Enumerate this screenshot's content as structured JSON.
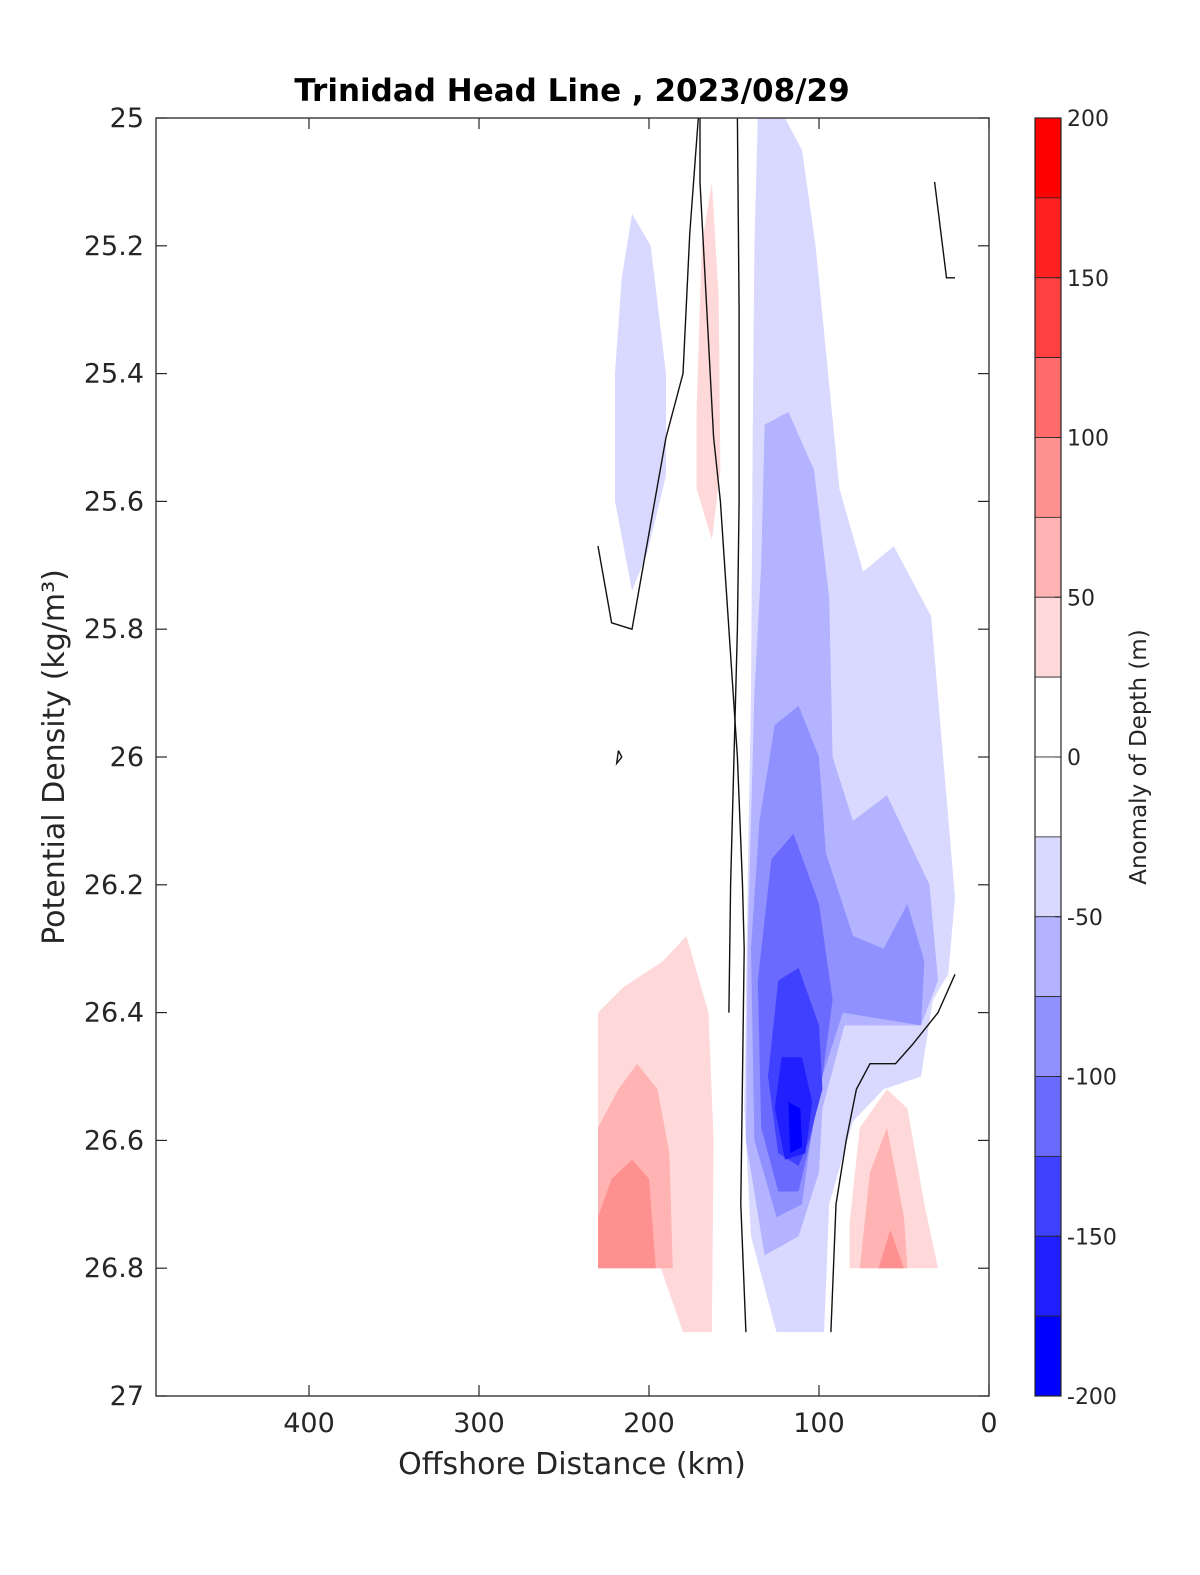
{
  "chart_data": {
    "type": "heatmap",
    "subtype": "filled-contour",
    "title": "Trinidad Head Line , 2023/08/29",
    "xlabel": "Offshore Distance (km)",
    "ylabel": "Potential Density (kg/m³)",
    "x_reversed": true,
    "y_reversed": true,
    "xlim": [
      0,
      490
    ],
    "ylim": [
      25,
      27
    ],
    "x_ticks": [
      400,
      300,
      200,
      100,
      0
    ],
    "x_tick_labels": [
      "400",
      "300",
      "200",
      "100",
      "0"
    ],
    "y_ticks": [
      25,
      25.2,
      25.4,
      25.6,
      25.8,
      26,
      26.2,
      26.4,
      26.6,
      26.8,
      27
    ],
    "y_tick_labels": [
      "25",
      "25.2",
      "25.4",
      "25.6",
      "25.8",
      "26",
      "26.2",
      "26.4",
      "26.6",
      "26.8",
      "27"
    ],
    "grid": false,
    "colorbar": {
      "label": "Anomaly of Depth (m)",
      "range": [
        -200,
        200
      ],
      "tick_values": [
        200,
        150,
        100,
        50,
        0,
        -50,
        -100,
        -150,
        -200
      ],
      "tick_labels": [
        "200",
        "150",
        "100",
        "50",
        "0",
        "-50",
        "-100",
        "-150",
        "-200"
      ],
      "levels": [
        {
          "min": 175,
          "max": 200,
          "color": "#ff0000"
        },
        {
          "min": 150,
          "max": 175,
          "color": "#ff2020"
        },
        {
          "min": 125,
          "max": 150,
          "color": "#ff4040"
        },
        {
          "min": 100,
          "max": 125,
          "color": "#ff6a6a"
        },
        {
          "min": 75,
          "max": 100,
          "color": "#ff9090"
        },
        {
          "min": 50,
          "max": 75,
          "color": "#ffb3b3"
        },
        {
          "min": 25,
          "max": 50,
          "color": "#ffd9d9"
        },
        {
          "min": 0,
          "max": 25,
          "color": "#ffffff"
        },
        {
          "min": -25,
          "max": 0,
          "color": "#ffffff"
        },
        {
          "min": -50,
          "max": -25,
          "color": "#d9d9ff"
        },
        {
          "min": -75,
          "max": -50,
          "color": "#b3b3ff"
        },
        {
          "min": -100,
          "max": -75,
          "color": "#9090ff"
        },
        {
          "min": -125,
          "max": -100,
          "color": "#6a6aff"
        },
        {
          "min": -150,
          "max": -125,
          "color": "#4040ff"
        },
        {
          "min": -175,
          "max": -150,
          "color": "#2020ff"
        },
        {
          "min": -200,
          "max": -175,
          "color": "#0000ff"
        }
      ]
    },
    "contour_regions": [
      {
        "name": "cross-shore negative core",
        "fill": "#d9d9ff",
        "points": [
          [
            135,
            25
          ],
          [
            115,
            25
          ],
          [
            105,
            25.05
          ],
          [
            95,
            25.2
          ],
          [
            85,
            25.55
          ],
          [
            70,
            25.72
          ],
          [
            55,
            25.7
          ],
          [
            40,
            25.8
          ],
          [
            22,
            26.2
          ],
          [
            28,
            26.35
          ],
          [
            45,
            26.52
          ],
          [
            80,
            26.55
          ],
          [
            95,
            26.75
          ],
          [
            98,
            26.9
          ],
          [
            125,
            26.9
          ],
          [
            140,
            26.7
          ],
          [
            143,
            26.5
          ],
          [
            140,
            26.0
          ],
          [
            138,
            25.5
          ]
        ]
      },
      {
        "name": "offshore negative patch",
        "fill": "#d9d9ff",
        "points": [
          [
            220,
            25.4
          ],
          [
            215,
            25.25
          ],
          [
            210,
            25.15
          ],
          [
            200,
            25.2
          ],
          [
            190,
            25.4
          ],
          [
            190,
            25.55
          ],
          [
            200,
            25.7
          ],
          [
            210,
            25.73
          ],
          [
            220,
            25.6
          ]
        ]
      },
      {
        "name": "offshore positive patch",
        "fill": "#ffd9d9",
        "points": [
          [
            172,
            25.45
          ],
          [
            168,
            25.2
          ],
          [
            162,
            25.1
          ],
          [
            158,
            25.3
          ],
          [
            158,
            25.55
          ],
          [
            163,
            25.65
          ],
          [
            172,
            25.6
          ]
        ]
      },
      {
        "name": "offshore positive lower",
        "fill": "#ffd9d9",
        "points": [
          [
            230,
            26.4
          ],
          [
            215,
            26.35
          ],
          [
            185,
            26.3
          ],
          [
            170,
            26.32
          ],
          [
            162,
            26.45
          ],
          [
            162,
            26.6
          ],
          [
            165,
            26.9
          ],
          [
            180,
            26.9
          ],
          [
            200,
            26.8
          ],
          [
            230,
            26.8
          ]
        ]
      }
    ]
  }
}
